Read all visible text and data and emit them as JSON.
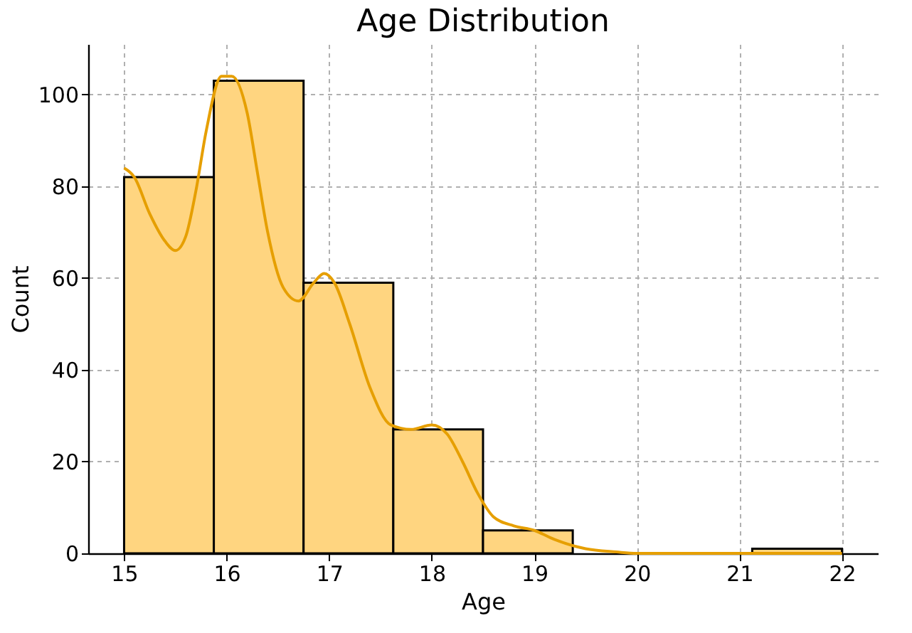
{
  "chart_data": {
    "type": "histogram",
    "title": "Age Distribution",
    "xlabel": "Age",
    "ylabel": "Count",
    "bins": [
      15,
      15.875,
      16.75,
      17.625,
      18.5,
      19.375,
      20.25,
      21.125,
      22
    ],
    "values": [
      82,
      103,
      59,
      27,
      5,
      0,
      0,
      1
    ],
    "color": "#ffd580",
    "series": [
      {
        "type": "line",
        "color": "#e69f00",
        "x": [
          15,
          15.1,
          15.25,
          15.4,
          15.5,
          15.6,
          15.7,
          15.8,
          15.95,
          16.05,
          16.2,
          16.3,
          16.4,
          16.55,
          16.7,
          16.85,
          16.95,
          17.05,
          17.2,
          17.4,
          17.6,
          17.8,
          18.0,
          18.15,
          18.3,
          18.45,
          18.6,
          18.8,
          19.0,
          19.2,
          19.5,
          19.8,
          20.0,
          20.5,
          21.0,
          21.5,
          22.0
        ],
        "values": [
          84,
          82,
          74,
          68,
          66,
          69,
          79,
          92,
          104,
          104,
          96,
          83,
          70,
          58,
          55,
          59,
          61,
          59,
          50,
          36,
          28,
          27,
          28,
          26,
          20,
          13,
          8,
          6,
          5,
          3,
          1,
          0.3,
          0,
          0,
          0,
          0,
          0
        ]
      }
    ],
    "xlim": [
      14.65,
      22.35
    ],
    "ylim": [
      0,
      111
    ],
    "xticks": [
      15,
      16,
      17,
      18,
      19,
      20,
      21,
      22
    ],
    "yticks": [
      0,
      20,
      40,
      60,
      80,
      100
    ],
    "grid": true,
    "marker": "none",
    "line_style": "solid"
  }
}
